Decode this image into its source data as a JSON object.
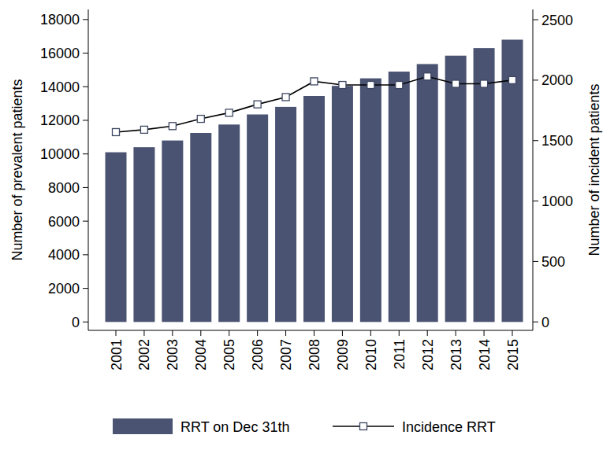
{
  "chart_data": {
    "type": "bar",
    "categories": [
      "2001",
      "2002",
      "2003",
      "2004",
      "2005",
      "2006",
      "2007",
      "2008",
      "2009",
      "2010",
      "2011",
      "2012",
      "2013",
      "2014",
      "2015"
    ],
    "series": [
      {
        "name": "RRT on Dec 31th",
        "type": "bar",
        "color": "#4a5372",
        "values": [
          10100,
          10400,
          10800,
          11250,
          11750,
          12350,
          12800,
          13450,
          14050,
          14500,
          14900,
          15350,
          15850,
          16300,
          16800
        ]
      },
      {
        "name": "Incidence RRT",
        "type": "line",
        "axis": "y2",
        "color": "#000000",
        "marker": "square",
        "line_style": "solid",
        "values": [
          1570,
          1590,
          1620,
          1680,
          1730,
          1800,
          1860,
          1990,
          1960,
          1960,
          1960,
          2030,
          1970,
          1970,
          2000
        ]
      }
    ],
    "y_label": "Number of prevalent patients",
    "y2_label": "Number of incident patients",
    "ylim": [
      -500,
      18600
    ],
    "yticks": [
      0,
      2000,
      4000,
      6000,
      8000,
      10000,
      12000,
      14000,
      16000,
      18000
    ],
    "y2lim": [
      -70,
      2585
    ],
    "y2ticks": [
      0,
      500,
      1000,
      1500,
      2000,
      2500
    ],
    "grid": false,
    "legend": "bottom"
  }
}
